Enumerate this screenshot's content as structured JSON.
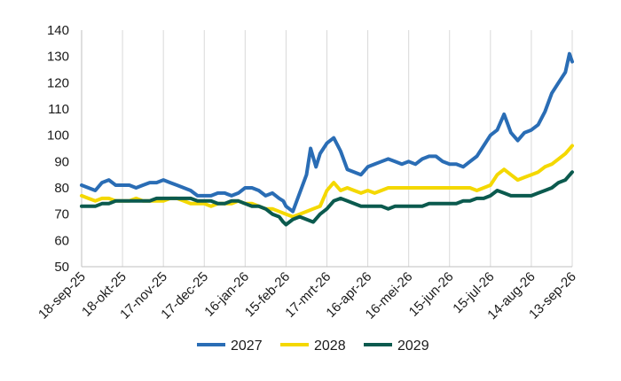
{
  "chart_data": {
    "type": "line",
    "title": "",
    "xlabel": "",
    "ylabel": "",
    "ylim": [
      50,
      140
    ],
    "yticks": [
      50,
      60,
      70,
      80,
      90,
      100,
      110,
      120,
      130,
      140
    ],
    "xlim": [
      "2025-09-18",
      "2026-09-13"
    ],
    "x_tick_labels": [
      "18-sep-25",
      "18-okt-25",
      "17-nov-25",
      "17-dec-25",
      "16-jan-26",
      "15-feb-26",
      "17-mrt-26",
      "16-apr-26",
      "16-mei-26",
      "15-jun-26",
      "15-jul-26",
      "14-aug-26",
      "13-sep-26"
    ],
    "x_tick_dates": [
      "2025-09-18",
      "2025-10-18",
      "2025-11-17",
      "2025-12-17",
      "2026-01-16",
      "2026-02-15",
      "2026-03-17",
      "2026-04-16",
      "2026-05-16",
      "2026-06-15",
      "2026-07-15",
      "2026-08-14",
      "2026-09-13"
    ],
    "grid": "vertical",
    "legend": "bottom",
    "series": [
      {
        "name": "2027",
        "color": "#2a6db5",
        "x": [
          "2025-09-18",
          "2025-09-23",
          "2025-09-28",
          "2025-10-03",
          "2025-10-08",
          "2025-10-13",
          "2025-10-18",
          "2025-10-23",
          "2025-10-28",
          "2025-11-02",
          "2025-11-07",
          "2025-11-12",
          "2025-11-17",
          "2025-11-22",
          "2025-11-27",
          "2025-12-02",
          "2025-12-07",
          "2025-12-12",
          "2025-12-17",
          "2025-12-22",
          "2025-12-27",
          "2026-01-01",
          "2026-01-06",
          "2026-01-11",
          "2026-01-16",
          "2026-01-21",
          "2026-01-26",
          "2026-01-31",
          "2026-02-05",
          "2026-02-10",
          "2026-02-13",
          "2026-02-15",
          "2026-02-20",
          "2026-02-25",
          "2026-03-02",
          "2026-03-05",
          "2026-03-09",
          "2026-03-12",
          "2026-03-17",
          "2026-03-22",
          "2026-03-27",
          "2026-04-01",
          "2026-04-06",
          "2026-04-11",
          "2026-04-16",
          "2026-04-21",
          "2026-04-26",
          "2026-05-01",
          "2026-05-06",
          "2026-05-11",
          "2026-05-16",
          "2026-05-21",
          "2026-05-26",
          "2026-05-31",
          "2026-06-05",
          "2026-06-10",
          "2026-06-15",
          "2026-06-20",
          "2026-06-25",
          "2026-06-30",
          "2026-07-05",
          "2026-07-10",
          "2026-07-15",
          "2026-07-20",
          "2026-07-25",
          "2026-07-30",
          "2026-08-04",
          "2026-08-09",
          "2026-08-14",
          "2026-08-19",
          "2026-08-24",
          "2026-08-29",
          "2026-09-03",
          "2026-09-08",
          "2026-09-11",
          "2026-09-13"
        ],
        "y": [
          81,
          80,
          79,
          82,
          83,
          81,
          81,
          81,
          80,
          81,
          82,
          82,
          83,
          82,
          81,
          80,
          79,
          77,
          77,
          77,
          78,
          78,
          77,
          78,
          80,
          80,
          79,
          77,
          78,
          76,
          75,
          73,
          71,
          78,
          85,
          95,
          88,
          93,
          97,
          99,
          94,
          87,
          86,
          85,
          88,
          89,
          90,
          91,
          90,
          89,
          90,
          89,
          91,
          92,
          92,
          90,
          89,
          89,
          88,
          90,
          92,
          96,
          100,
          102,
          108,
          101,
          98,
          101,
          102,
          104,
          109,
          116,
          120,
          124,
          131,
          128
        ]
      },
      {
        "name": "2028",
        "color": "#f4d800",
        "x": [
          "2025-09-18",
          "2025-09-23",
          "2025-09-28",
          "2025-10-03",
          "2025-10-08",
          "2025-10-13",
          "2025-10-18",
          "2025-10-23",
          "2025-10-28",
          "2025-11-02",
          "2025-11-07",
          "2025-11-12",
          "2025-11-17",
          "2025-11-22",
          "2025-11-27",
          "2025-12-02",
          "2025-12-07",
          "2025-12-12",
          "2025-12-17",
          "2025-12-22",
          "2025-12-27",
          "2026-01-01",
          "2026-01-06",
          "2026-01-11",
          "2026-01-16",
          "2026-01-21",
          "2026-01-26",
          "2026-01-31",
          "2026-02-05",
          "2026-02-10",
          "2026-02-15",
          "2026-02-20",
          "2026-02-25",
          "2026-03-02",
          "2026-03-07",
          "2026-03-12",
          "2026-03-17",
          "2026-03-22",
          "2026-03-27",
          "2026-04-01",
          "2026-04-06",
          "2026-04-11",
          "2026-04-16",
          "2026-04-21",
          "2026-04-26",
          "2026-05-01",
          "2026-05-06",
          "2026-05-11",
          "2026-05-16",
          "2026-05-21",
          "2026-05-26",
          "2026-05-31",
          "2026-06-05",
          "2026-06-10",
          "2026-06-15",
          "2026-06-20",
          "2026-06-25",
          "2026-06-30",
          "2026-07-05",
          "2026-07-10",
          "2026-07-15",
          "2026-07-20",
          "2026-07-25",
          "2026-07-30",
          "2026-08-04",
          "2026-08-09",
          "2026-08-14",
          "2026-08-19",
          "2026-08-24",
          "2026-08-29",
          "2026-09-03",
          "2026-09-08",
          "2026-09-13"
        ],
        "y": [
          77,
          76,
          75,
          76,
          76,
          75,
          75,
          75,
          76,
          75,
          75,
          75,
          75,
          76,
          76,
          75,
          74,
          74,
          74,
          73,
          74,
          74,
          74,
          75,
          74,
          74,
          73,
          72,
          72,
          71,
          70,
          69,
          70,
          71,
          72,
          73,
          79,
          82,
          79,
          80,
          79,
          78,
          79,
          78,
          79,
          80,
          80,
          80,
          80,
          80,
          80,
          80,
          80,
          80,
          80,
          80,
          80,
          80,
          79,
          80,
          81,
          85,
          87,
          85,
          83,
          84,
          85,
          86,
          88,
          89,
          91,
          93,
          96
        ]
      },
      {
        "name": "2029",
        "color": "#0b5a4e",
        "x": [
          "2025-09-18",
          "2025-09-23",
          "2025-09-28",
          "2025-10-03",
          "2025-10-08",
          "2025-10-13",
          "2025-10-18",
          "2025-10-23",
          "2025-10-28",
          "2025-11-02",
          "2025-11-07",
          "2025-11-12",
          "2025-11-17",
          "2025-11-22",
          "2025-11-27",
          "2025-12-02",
          "2025-12-07",
          "2025-12-12",
          "2025-12-17",
          "2025-12-22",
          "2025-12-27",
          "2026-01-01",
          "2026-01-06",
          "2026-01-11",
          "2026-01-16",
          "2026-01-21",
          "2026-01-26",
          "2026-01-31",
          "2026-02-05",
          "2026-02-10",
          "2026-02-13",
          "2026-02-15",
          "2026-02-20",
          "2026-02-25",
          "2026-03-02",
          "2026-03-07",
          "2026-03-12",
          "2026-03-17",
          "2026-03-22",
          "2026-03-27",
          "2026-04-01",
          "2026-04-06",
          "2026-04-11",
          "2026-04-16",
          "2026-04-21",
          "2026-04-26",
          "2026-05-01",
          "2026-05-06",
          "2026-05-11",
          "2026-05-16",
          "2026-05-21",
          "2026-05-26",
          "2026-05-31",
          "2026-06-05",
          "2026-06-10",
          "2026-06-15",
          "2026-06-20",
          "2026-06-25",
          "2026-06-30",
          "2026-07-05",
          "2026-07-10",
          "2026-07-15",
          "2026-07-20",
          "2026-07-25",
          "2026-07-30",
          "2026-08-04",
          "2026-08-09",
          "2026-08-14",
          "2026-08-19",
          "2026-08-24",
          "2026-08-29",
          "2026-09-03",
          "2026-09-08",
          "2026-09-13"
        ],
        "y": [
          73,
          73,
          73,
          74,
          74,
          75,
          75,
          75,
          75,
          75,
          75,
          76,
          76,
          76,
          76,
          76,
          76,
          75,
          75,
          75,
          74,
          74,
          75,
          75,
          74,
          73,
          73,
          72,
          70,
          69,
          67,
          66,
          68,
          69,
          68,
          67,
          70,
          72,
          75,
          76,
          75,
          74,
          73,
          73,
          73,
          73,
          72,
          73,
          73,
          73,
          73,
          73,
          74,
          74,
          74,
          74,
          74,
          75,
          75,
          76,
          76,
          77,
          79,
          78,
          77,
          77,
          77,
          77,
          78,
          79,
          80,
          82,
          83,
          86
        ]
      }
    ]
  }
}
